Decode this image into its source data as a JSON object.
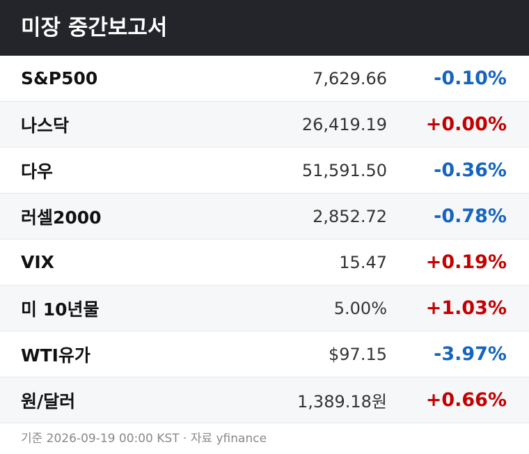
{
  "header": {
    "title": "미장 중간보고서"
  },
  "table": {
    "rows": [
      [
        "S&P500",
        "7,629.66",
        "-0.10%"
      ],
      [
        "나스닥",
        "26,419.19",
        "+0.00%"
      ],
      [
        "다우",
        "51,591.50",
        "-0.36%"
      ],
      [
        "러셀2000",
        "2,852.72",
        "-0.78%"
      ],
      [
        "VIX",
        "15.47",
        "+0.19%"
      ],
      [
        "미 10년물",
        "5.00%",
        "+1.03%"
      ],
      [
        "WTI유가",
        "$97.15",
        "-3.97%"
      ],
      [
        "원/달러",
        "1,389.18원",
        "+0.66%"
      ]
    ]
  },
  "footer": {
    "note": "기준 2026-09-19 00:00 KST · 자료 yfinance"
  }
}
